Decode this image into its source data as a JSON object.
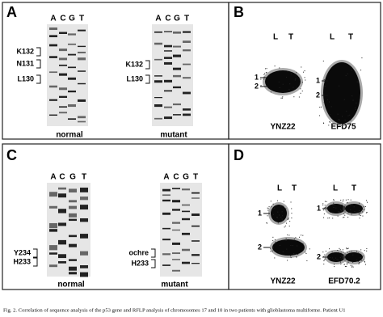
{
  "figure": {
    "panels": [
      {
        "letter": "A",
        "gels": [
          {
            "lanes": [
              "A",
              "C",
              "G",
              "T"
            ],
            "markers": [
              "K132",
              "N131",
              "L130"
            ],
            "label": "normal"
          },
          {
            "lanes": [
              "A",
              "C",
              "G",
              "T"
            ],
            "markers": [
              "K132",
              "L130"
            ],
            "label": "mutant"
          }
        ]
      },
      {
        "letter": "B",
        "gels": [
          {
            "lanes": [
              "L",
              "T"
            ],
            "markers": [
              "1",
              "2"
            ],
            "label": "YNZ22"
          },
          {
            "lanes": [
              "L",
              "T"
            ],
            "markers": [
              "1",
              "2"
            ],
            "label": "EFD75"
          }
        ]
      },
      {
        "letter": "C",
        "gels": [
          {
            "lanes": [
              "A",
              "C",
              "G",
              "T"
            ],
            "markers": [
              "Y234",
              "H233"
            ],
            "label": "normal"
          },
          {
            "lanes": [
              "A",
              "C",
              "G",
              "T"
            ],
            "markers": [
              "ochre",
              "H233"
            ],
            "label": "mutant"
          }
        ]
      },
      {
        "letter": "D",
        "gels": [
          {
            "lanes": [
              "L",
              "T"
            ],
            "markers": [
              "1",
              "2"
            ],
            "label": "YNZ22"
          },
          {
            "lanes": [
              "L",
              "T"
            ],
            "markers": [
              "1",
              "2"
            ],
            "label": "EFD70.2"
          }
        ]
      }
    ],
    "caption": "Fig. 2. Correlation of sequence analysis of the p53 gene and RFLP analysis of chromosomes 17 and 10 in two patients with glioblastoma multiforme. Patient U1"
  }
}
